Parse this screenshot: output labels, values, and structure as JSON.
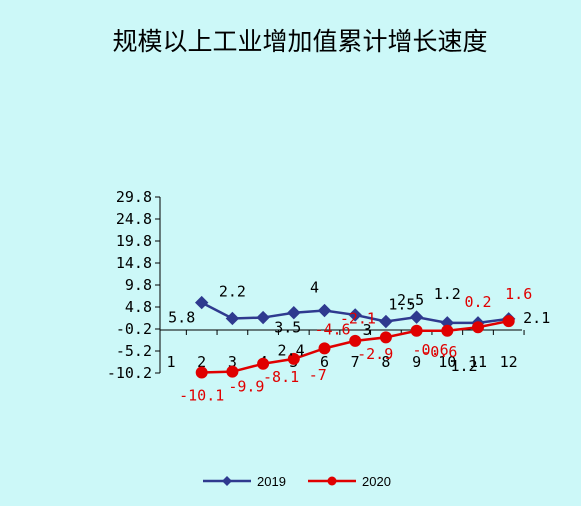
{
  "chart_data": {
    "type": "line",
    "title": "规模以上工业增加值累计增长速度",
    "categories": [
      "1",
      "2",
      "3",
      "4",
      "5",
      "6",
      "7",
      "8",
      "9",
      "10",
      "11",
      "12"
    ],
    "y_ticks": [
      "29.8",
      "24.8",
      "19.8",
      "14.8",
      "9.8",
      "4.8",
      "-0.2",
      "-5.2",
      "-10.2"
    ],
    "ylim": [
      -10.2,
      29.8
    ],
    "grid": false,
    "legend_position": "bottom",
    "series": [
      {
        "name": "2019",
        "color": "#2f3a8f",
        "marker": "diamond",
        "values": [
          null,
          5.8,
          2.2,
          2.4,
          3.5,
          4,
          3,
          1.5,
          2.5,
          1.2,
          1.2,
          2.1
        ],
        "labels": [
          null,
          "5.8",
          "2.2",
          "2.4",
          "3.5",
          "4",
          "3",
          "1.5",
          "2.5",
          "1.2",
          "1.2",
          "2.1"
        ]
      },
      {
        "name": "2020",
        "color": "#e00000",
        "marker": "circle",
        "values": [
          null,
          -10.1,
          -9.9,
          -8.1,
          -7,
          -4.6,
          -2.9,
          -2.1,
          -0.6,
          -0.6,
          0.2,
          1.6
        ],
        "labels": [
          null,
          "-10.1",
          "-9.9",
          "-8.1",
          "-7",
          "-4.6",
          "-2.9",
          "-2.1",
          "-0.6",
          "-0.6",
          "0.2",
          "1.6"
        ]
      }
    ]
  }
}
